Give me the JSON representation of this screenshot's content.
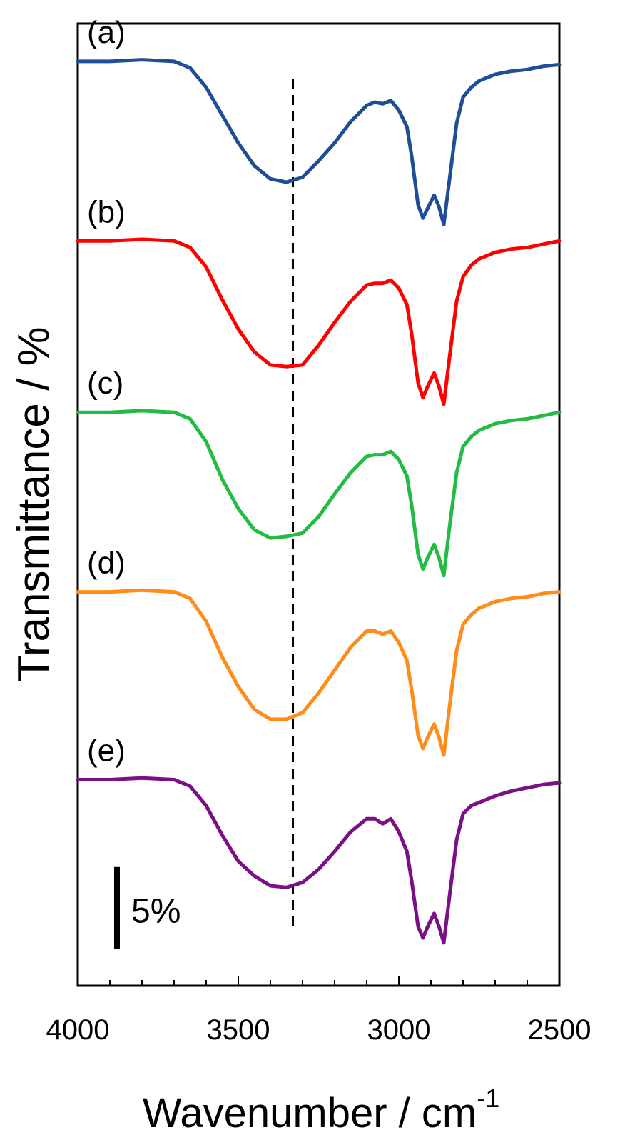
{
  "chart_data": {
    "type": "line",
    "title": "",
    "xlabel": "Wavenumber / cm",
    "xlabel_superscript": "-1",
    "ylabel": "Transmittance / %",
    "xlim": [
      4000,
      2500
    ],
    "x_axis_reversed": true,
    "xticks": [
      "4000",
      "3500",
      "3000",
      "2500"
    ],
    "xtick_values": [
      4000,
      3500,
      3000,
      2500
    ],
    "y_ticks_shown": false,
    "grid": false,
    "reference_line": {
      "x": 3330,
      "style": "dashed"
    },
    "scale_bar": {
      "label": "5%",
      "value": 5
    },
    "ylim": [
      0,
      55
    ],
    "x": [
      4000,
      3900,
      3800,
      3700,
      3650,
      3600,
      3550,
      3500,
      3450,
      3400,
      3350,
      3300,
      3250,
      3200,
      3150,
      3100,
      3075,
      3050,
      3025,
      3000,
      2975,
      2960,
      2940,
      2925,
      2910,
      2890,
      2875,
      2860,
      2840,
      2820,
      2800,
      2775,
      2750,
      2700,
      2650,
      2600,
      2550,
      2500
    ],
    "series": [
      {
        "name": "(a)",
        "label": "(a)",
        "color": "#1f4e96",
        "offset": 44,
        "values": [
          10.0,
          10.0,
          10.1,
          10.0,
          9.6,
          8.4,
          6.7,
          5.0,
          3.6,
          2.8,
          2.6,
          2.9,
          3.9,
          5.0,
          6.3,
          7.3,
          7.5,
          7.4,
          7.6,
          7.0,
          6.0,
          4.2,
          1.2,
          0.4,
          1.0,
          1.8,
          1.1,
          0.0,
          3.1,
          6.2,
          7.8,
          8.4,
          8.8,
          9.2,
          9.4,
          9.5,
          9.7,
          9.8
        ]
      },
      {
        "name": "(b)",
        "label": "(b)",
        "color": "#ff0000",
        "offset": 33,
        "values": [
          10.0,
          10.0,
          10.1,
          10.0,
          9.6,
          8.4,
          6.4,
          4.6,
          3.2,
          2.4,
          2.3,
          2.4,
          3.6,
          5.0,
          6.3,
          7.3,
          7.4,
          7.4,
          7.6,
          7.1,
          6.1,
          4.3,
          1.3,
          0.4,
          1.1,
          1.9,
          1.1,
          0.0,
          3.2,
          6.3,
          7.8,
          8.5,
          8.9,
          9.3,
          9.5,
          9.6,
          9.8,
          10.0
        ]
      },
      {
        "name": "(c)",
        "label": "(c)",
        "color": "#22bb44",
        "offset": 22.5,
        "values": [
          10.0,
          10.0,
          10.1,
          10.0,
          9.6,
          8.2,
          5.9,
          4.1,
          2.8,
          2.3,
          2.4,
          2.6,
          3.6,
          5.0,
          6.3,
          7.3,
          7.4,
          7.4,
          7.6,
          7.1,
          6.1,
          4.3,
          1.3,
          0.4,
          1.1,
          1.9,
          1.1,
          0.0,
          3.3,
          6.3,
          7.9,
          8.5,
          8.9,
          9.3,
          9.5,
          9.6,
          9.8,
          10.0
        ]
      },
      {
        "name": "(d)",
        "label": "(d)",
        "color": "#ff8c1a",
        "offset": 11.5,
        "values": [
          10.0,
          10.0,
          10.1,
          10.0,
          9.6,
          8.2,
          6.0,
          4.2,
          2.8,
          2.2,
          2.2,
          2.6,
          3.8,
          5.2,
          6.6,
          7.6,
          7.6,
          7.4,
          7.6,
          6.9,
          5.8,
          4.0,
          1.2,
          0.4,
          1.1,
          1.9,
          1.1,
          0.0,
          3.3,
          6.4,
          8.0,
          8.6,
          9.0,
          9.4,
          9.6,
          9.7,
          9.9,
          10.0
        ]
      },
      {
        "name": "(e)",
        "label": "(e)",
        "color": "#7a0f86",
        "offset": 0,
        "values": [
          10.0,
          10.0,
          10.1,
          10.0,
          9.6,
          8.4,
          6.6,
          5.0,
          4.1,
          3.5,
          3.4,
          3.7,
          4.5,
          5.6,
          6.8,
          7.6,
          7.6,
          7.3,
          7.6,
          6.8,
          5.6,
          3.8,
          1.0,
          0.3,
          1.0,
          1.8,
          1.0,
          0.0,
          3.2,
          6.3,
          7.9,
          8.4,
          8.6,
          9.0,
          9.3,
          9.5,
          9.7,
          9.8
        ]
      }
    ]
  }
}
